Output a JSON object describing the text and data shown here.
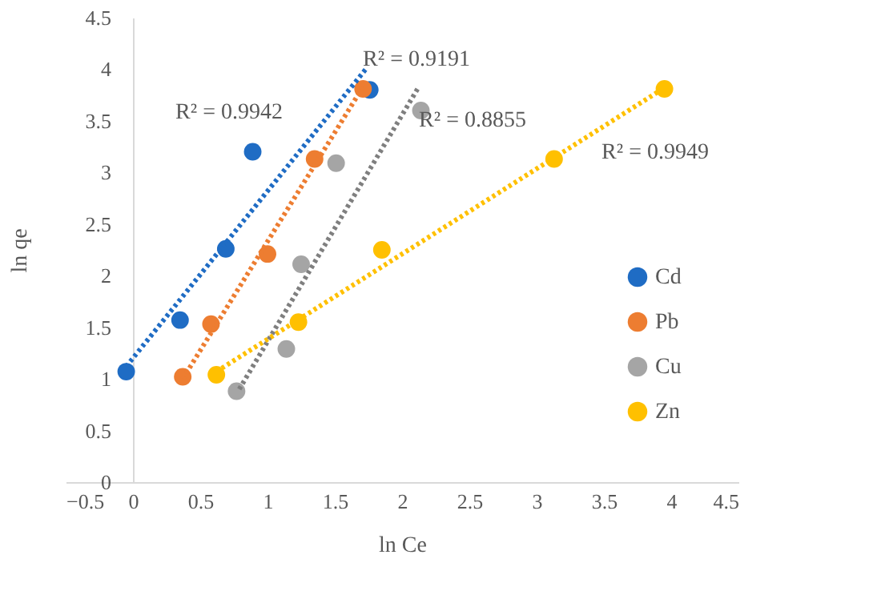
{
  "chart_data": {
    "type": "scatter",
    "xlabel": "ln Ce",
    "ylabel": "ln qe",
    "xlim": [
      -0.5,
      4.5
    ],
    "xticks": [
      -0.5,
      0,
      0.5,
      1,
      1.5,
      2,
      2.5,
      3,
      3.5,
      4,
      4.5
    ],
    "ylim": [
      0,
      4.5
    ],
    "yticks": [
      0,
      0.5,
      1,
      1.5,
      2,
      2.5,
      3,
      3.5,
      4,
      4.5
    ],
    "grid": false,
    "legend": "right",
    "marker": "circle",
    "series": [
      {
        "name": "Cd",
        "color": "#1f6cc4",
        "x": [
          -0.05,
          0.35,
          0.69,
          0.89,
          1.76
        ],
        "values": [
          1.07,
          1.57,
          2.26,
          3.2,
          3.8
        ]
      },
      {
        "name": "Pb",
        "color": "#ed7d31",
        "x": [
          0.37,
          0.58,
          1.0,
          1.35,
          1.71
        ],
        "values": [
          1.02,
          1.53,
          2.21,
          3.13,
          3.81
        ]
      },
      {
        "name": "Cu",
        "color": "#a5a5a5",
        "x": [
          0.77,
          1.14,
          1.25,
          1.51,
          2.14
        ],
        "values": [
          0.88,
          1.29,
          2.11,
          3.09,
          3.6
        ]
      },
      {
        "name": "Zn",
        "color": "#ffc000",
        "x": [
          0.62,
          1.23,
          1.85,
          3.13,
          3.95
        ],
        "values": [
          1.04,
          1.55,
          2.25,
          3.13,
          3.81
        ]
      },
      {
        "type": "line",
        "color": "#1f6cc4",
        "line_style": "dotted",
        "marker": "none",
        "x": [
          -0.05,
          1.73
        ],
        "values": [
          1.12,
          4.0
        ]
      },
      {
        "type": "line",
        "color": "#ed7d31",
        "line_style": "dotted",
        "marker": "none",
        "x": [
          0.37,
          1.71
        ],
        "values": [
          1.0,
          3.83
        ]
      },
      {
        "type": "line",
        "color": "#7f7f7f",
        "line_style": "dotted",
        "marker": "none",
        "x": [
          0.79,
          2.12
        ],
        "values": [
          0.9,
          3.82
        ]
      },
      {
        "type": "line",
        "color": "#ffc000",
        "line_style": "dotted",
        "marker": "none",
        "x": [
          0.62,
          3.95
        ],
        "values": [
          1.07,
          3.82
        ]
      }
    ],
    "annotations": [
      "R² = 0.9942",
      "R² = 0.9191",
      "R² = 0.8855",
      "R² = 0.9949"
    ]
  }
}
